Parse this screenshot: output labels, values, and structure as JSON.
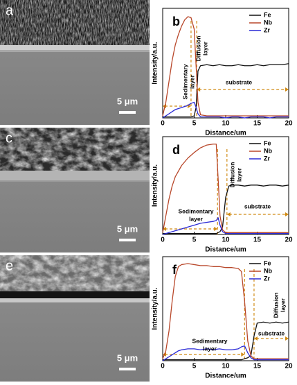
{
  "images": [
    {
      "label": "a",
      "scale_bar": "5 μm"
    },
    {
      "label": "c",
      "scale_bar": "5 μm"
    },
    {
      "label": "e",
      "scale_bar": "5 μm"
    }
  ],
  "chart_data": [
    {
      "type": "line",
      "panel": "b",
      "xlabel": "Distance/um",
      "ylabel": "Intensity/a.u.",
      "xlim": [
        0,
        20
      ],
      "xticks": [
        0,
        5,
        10,
        15,
        20
      ],
      "ylim": [
        0,
        105
      ],
      "legend": "top-right",
      "x": [
        0,
        0.5,
        1,
        1.5,
        2,
        2.5,
        3,
        3.5,
        4,
        4.5,
        5,
        5.3,
        5.6,
        6,
        7,
        8,
        9,
        10,
        11,
        12,
        13,
        14,
        15,
        16,
        17,
        18,
        19,
        20
      ],
      "series": [
        {
          "name": "Fe",
          "color": "#111111",
          "values": [
            1,
            1,
            1,
            1,
            1,
            1,
            1,
            1,
            1,
            1,
            2,
            10,
            45,
            50,
            51,
            50,
            51,
            50,
            50,
            51,
            50,
            50,
            51,
            50,
            51,
            51,
            51,
            52
          ]
        },
        {
          "name": "Nb",
          "color": "#b8472a",
          "values": [
            2,
            15,
            35,
            55,
            70,
            80,
            88,
            94,
            97,
            96,
            85,
            50,
            15,
            3,
            2,
            2,
            2,
            2,
            2,
            2,
            2,
            2,
            2,
            2,
            2,
            2,
            2,
            2
          ]
        },
        {
          "name": "Zr",
          "color": "#2a2ad6",
          "values": [
            0,
            2,
            4,
            6,
            8,
            9,
            10,
            11,
            12,
            14,
            15,
            10,
            4,
            1,
            1,
            1,
            1,
            0,
            1,
            1,
            0,
            1,
            1,
            1,
            0,
            1,
            1,
            1
          ]
        }
      ],
      "layer_boundaries": [
        4.5,
        5.4
      ],
      "annotations": [
        {
          "text": [
            "Sedimentary",
            "layer"
          ]
        },
        {
          "text": [
            "Diffusion",
            "layer"
          ]
        },
        {
          "text": [
            "substrate"
          ]
        }
      ]
    },
    {
      "type": "line",
      "panel": "d",
      "xlabel": "Distance/um",
      "ylabel": "Intensity/a.u.",
      "xlim": [
        0,
        20
      ],
      "xticks": [
        0,
        5,
        10,
        15,
        20
      ],
      "ylim": [
        0,
        105
      ],
      "legend": "top-right",
      "x": [
        0,
        0.5,
        1,
        1.5,
        2,
        3,
        4,
        5,
        6,
        7,
        8,
        8.5,
        8.8,
        9.1,
        9.5,
        10,
        10.5,
        11,
        12,
        13,
        14,
        15,
        16,
        17,
        18,
        19,
        20
      ],
      "series": [
        {
          "name": "Fe",
          "color": "#111111",
          "values": [
            1,
            1,
            1,
            1,
            1,
            1,
            1,
            1,
            1,
            1,
            1,
            1,
            2,
            3,
            8,
            40,
            52,
            53,
            53,
            52,
            53,
            53,
            52,
            53,
            53,
            52,
            53
          ]
        },
        {
          "name": "Nb",
          "color": "#b8472a",
          "values": [
            2,
            20,
            38,
            52,
            62,
            74,
            82,
            88,
            93,
            96,
            97,
            97,
            60,
            20,
            5,
            2,
            2,
            2,
            2,
            2,
            2,
            2,
            2,
            2,
            2,
            2,
            2
          ]
        },
        {
          "name": "Zr",
          "color": "#2a2ad6",
          "values": [
            0,
            1,
            2,
            3,
            4,
            6,
            8,
            10,
            12,
            13,
            14,
            15,
            18,
            10,
            3,
            1,
            1,
            1,
            1,
            1,
            1,
            1,
            1,
            1,
            1,
            1,
            1
          ]
        }
      ],
      "layer_boundaries": [
        8.7,
        10.2
      ],
      "annotations": [
        {
          "text": [
            "Sedimentary",
            "layer"
          ]
        },
        {
          "text": [
            "Diffusion",
            "layer"
          ]
        },
        {
          "text": [
            "substrate"
          ]
        }
      ]
    },
    {
      "type": "line",
      "panel": "f",
      "xlabel": "Distance/um",
      "ylabel": "Intensity/a.u.",
      "xlim": [
        0,
        20
      ],
      "xticks": [
        0,
        5,
        10,
        15,
        20
      ],
      "ylim": [
        0,
        105
      ],
      "legend": "top-right",
      "x": [
        0,
        0.5,
        1,
        1.5,
        2,
        2.5,
        3,
        4,
        5,
        6,
        7,
        8,
        9,
        10,
        11,
        12,
        12.5,
        13,
        13.5,
        14,
        14.5,
        15,
        16,
        17,
        18,
        19,
        20
      ],
      "series": [
        {
          "name": "Fe",
          "color": "#111111",
          "values": [
            1,
            1,
            1,
            1,
            1,
            1,
            1,
            1,
            1,
            1,
            1,
            1,
            1,
            1,
            1,
            1,
            1,
            2,
            3,
            5,
            25,
            38,
            39,
            38,
            39,
            38,
            39
          ]
        },
        {
          "name": "Nb",
          "color": "#b8472a",
          "values": [
            2,
            10,
            30,
            60,
            85,
            95,
            97,
            98,
            97,
            96,
            96,
            95,
            95,
            94,
            94,
            93,
            90,
            60,
            20,
            5,
            2,
            2,
            2,
            2,
            2,
            2,
            2
          ]
        },
        {
          "name": "Zr",
          "color": "#2a2ad6",
          "values": [
            0,
            2,
            4,
            6,
            8,
            10,
            11,
            12,
            12,
            11,
            12,
            11,
            12,
            11,
            11,
            12,
            14,
            15,
            8,
            3,
            1,
            1,
            1,
            1,
            1,
            1,
            1
          ]
        }
      ],
      "layer_boundaries": [
        13,
        14.5
      ],
      "annotations": [
        {
          "text": [
            "Sedimentary",
            "layer"
          ]
        },
        {
          "text": [
            "Diffusion",
            "layer"
          ]
        },
        {
          "text": [
            "substrate"
          ]
        }
      ]
    }
  ]
}
